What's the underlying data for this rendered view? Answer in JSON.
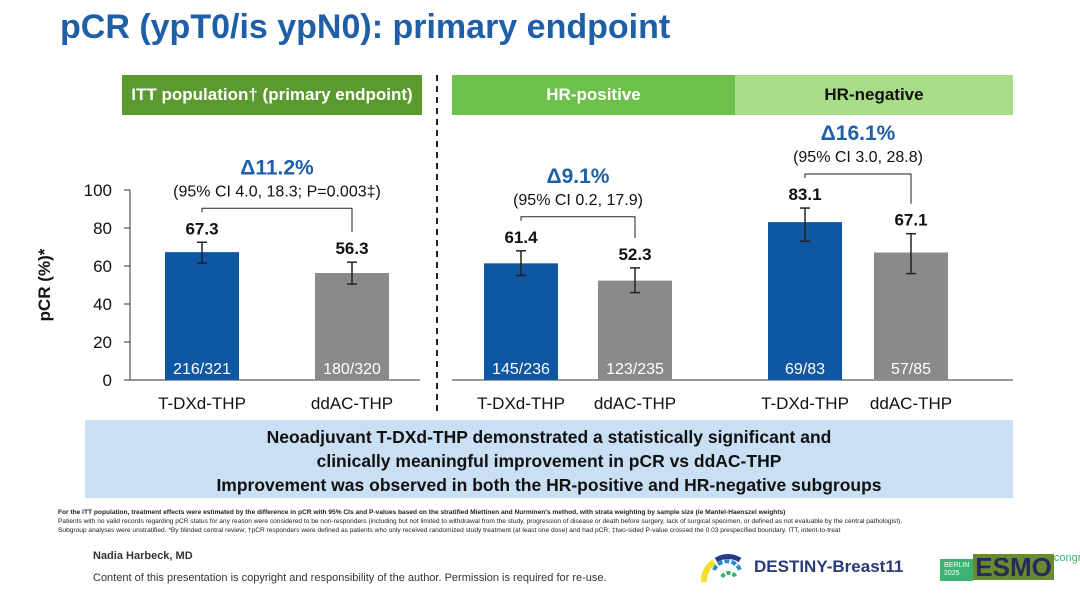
{
  "title": "pCR (ypT0/is ypN0): primary endpoint",
  "panels": [
    {
      "label": "ITT population† (primary endpoint)",
      "color": "#5a9a2f",
      "text_color": "#fff"
    },
    {
      "label": "HR-positive",
      "color": "#6dc04b",
      "text_color": "#fff"
    },
    {
      "label": "HR-negative",
      "color": "#a9dc86",
      "text_color": "#111"
    }
  ],
  "chart_data": {
    "type": "bar",
    "ylabel": "pCR (%)*",
    "ylim": [
      0,
      100
    ],
    "yticks": [
      0,
      20,
      40,
      60,
      80,
      100
    ],
    "colors": {
      "T-DXd-THP": "#0f56a3",
      "ddAC-THP": "#8a8a8a"
    },
    "groups": [
      {
        "panel": "ITT population",
        "delta": "Δ11.2%",
        "ci_text": "(95% CI 4.0, 18.3; P=0.003‡)",
        "bars": [
          {
            "category": "T-DXd-THP",
            "value": 67.3,
            "ci": [
              61.5,
              72.5
            ],
            "n": "216/321"
          },
          {
            "category": "ddAC-THP",
            "value": 56.3,
            "ci": [
              50.5,
              62
            ],
            "n": "180/320"
          }
        ]
      },
      {
        "panel": "HR-positive",
        "delta": "Δ9.1%",
        "ci_text": "(95% CI 0.2, 17.9)",
        "bars": [
          {
            "category": "T-DXd-THP",
            "value": 61.4,
            "ci": [
              55,
              68
            ],
            "n": "145/236"
          },
          {
            "category": "ddAC-THP",
            "value": 52.3,
            "ci": [
              46,
              59
            ],
            "n": "123/235"
          }
        ]
      },
      {
        "panel": "HR-negative",
        "delta": "Δ16.1%",
        "ci_text": "(95% CI 3.0, 28.8)",
        "bars": [
          {
            "category": "T-DXd-THP",
            "value": 83.1,
            "ci": [
              73,
              90.5
            ],
            "n": "69/83"
          },
          {
            "category": "ddAC-THP",
            "value": 67.1,
            "ci": [
              56,
              77
            ],
            "n": "57/85"
          }
        ]
      }
    ]
  },
  "conclusion": [
    "Neoadjuvant T-DXd-THP demonstrated a statistically significant and",
    "clinically meaningful improvement in pCR vs ddAC-THP",
    "Improvement was observed in both the HR-positive and HR-negative subgroups"
  ],
  "footnotes": [
    "For the ITT population, treatment effects were estimated by the difference in pCR with 95% CIs and P-values based on the stratified Miettinen and Nurminen's method, with strata weighting by sample size (ie Mantel-Haenszel weights)",
    "Patients with no valid records regarding pCR status for any reason were considered to be non-responders (including but not limited to withdrawal from the study, progression of disease or death before surgery, lack of surgical specimen, or defined as not evaluable by the central pathologist).",
    "Subgroup analyses were unstratified. *By blinded central review; †pCR responders were defined as patients who only received randomized study treatment (at least one dose) and had pCR; ‡two-sided P-value crossed the 0.03 prespecified boundary. ITT, intent-to-treat"
  ],
  "author": "Nadia Harbeck, MD",
  "copyright": "Content of this presentation is copyright and responsibility of the author. Permission is required for re-use.",
  "logos": {
    "trial": "DESTINY-Breast11",
    "congress_city": "BERLIN",
    "congress_year": "2025",
    "congress_name": "ESMO",
    "congress_word": "congress"
  }
}
